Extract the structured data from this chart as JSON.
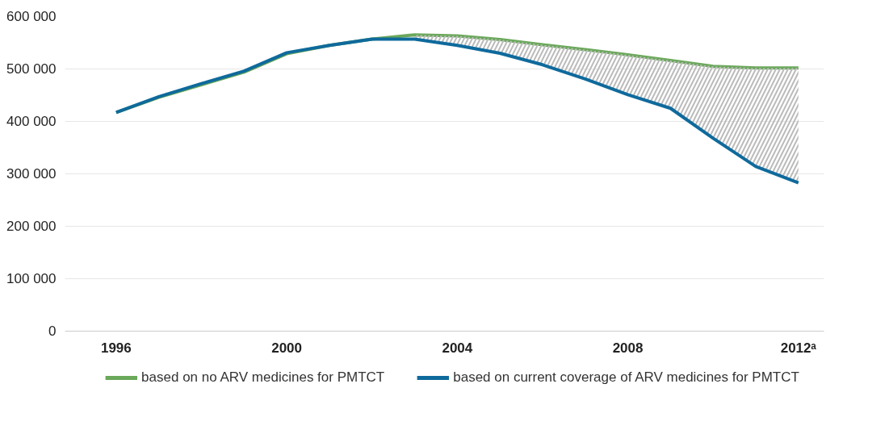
{
  "chart_data": {
    "type": "line",
    "x": [
      1996,
      1997,
      1998,
      1999,
      2000,
      2001,
      2002,
      2003,
      2004,
      2005,
      2006,
      2007,
      2008,
      2009,
      2010,
      2011,
      2012
    ],
    "series": [
      {
        "name": "based on no ARV medicines for PMTCT",
        "color": "#6aa85a",
        "values": [
          417000,
          446000,
          470000,
          494000,
          529000,
          545000,
          557000,
          565000,
          563000,
          556000,
          546000,
          537000,
          527000,
          516000,
          505000,
          502000,
          502000
        ]
      },
      {
        "name": "based on current coverage of ARV medicines for PMTCT",
        "color": "#0f6a9c",
        "values": [
          417000,
          447000,
          472000,
          496000,
          531000,
          545000,
          557000,
          557000,
          545000,
          530000,
          508000,
          481000,
          451000,
          425000,
          368000,
          314000,
          283000
        ],
        "lower": [
          null,
          null,
          null,
          null,
          null,
          null,
          null,
          557000,
          545000,
          530000,
          508000,
          481000,
          451000,
          425000,
          368000,
          314000,
          283000
        ],
        "upper": [
          null,
          null,
          null,
          null,
          null,
          null,
          null,
          565000,
          563000,
          556000,
          546000,
          537000,
          527000,
          516000,
          505000,
          502000,
          502000
        ]
      }
    ],
    "xlim": [
      1994.8,
      2012.6
    ],
    "xticks": [
      1996,
      2000,
      2004,
      2008,
      {
        "value": 2012,
        "label": "2012ᵃ"
      }
    ],
    "ylim": [
      0,
      600000
    ],
    "yticks": [
      {
        "value": 0,
        "label": "0"
      },
      {
        "value": 100000,
        "label": "100 000"
      },
      {
        "value": 200000,
        "label": "200 000"
      },
      {
        "value": 300000,
        "label": "300 000"
      },
      {
        "value": 400000,
        "label": "400 000"
      },
      {
        "value": 500000,
        "label": "500 000"
      },
      {
        "value": 600000,
        "label": "600 000"
      }
    ],
    "grid": "y",
    "legend": "bottom",
    "marker": "none",
    "line_style": "solid"
  }
}
